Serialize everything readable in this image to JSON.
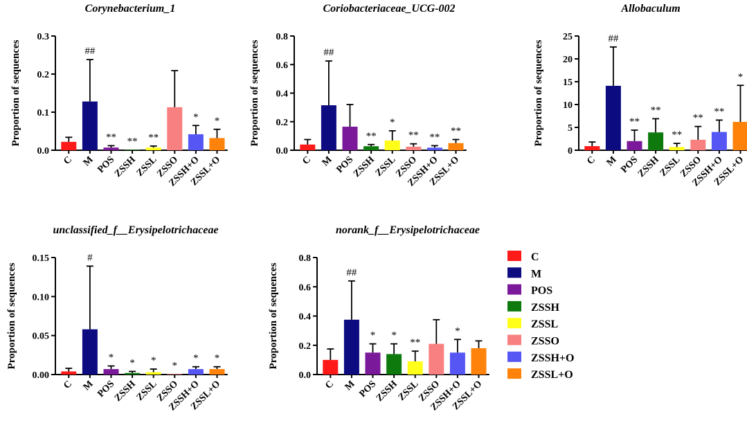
{
  "legend": {
    "items": [
      {
        "label": "C",
        "color": "#ff1a1a"
      },
      {
        "label": "M",
        "color": "#0c0c80"
      },
      {
        "label": "POS",
        "color": "#7a1a9a"
      },
      {
        "label": "ZSSH",
        "color": "#0e7a0e"
      },
      {
        "label": "ZSSL",
        "color": "#ffff1a"
      },
      {
        "label": "ZSSO",
        "color": "#f98080"
      },
      {
        "label": "ZSSH+O",
        "color": "#5656f5"
      },
      {
        "label": "ZSSL+O",
        "color": "#ff820a"
      }
    ]
  },
  "chart_data": [
    {
      "type": "bar",
      "title": "Corynebacterium_1",
      "ylabel": "Proportion of sequences",
      "xlabel": "",
      "ylim": [
        0,
        0.3
      ],
      "yticks": [
        "0.0",
        "0.1",
        "0.2",
        "0.3"
      ],
      "categories": [
        "C",
        "M",
        "POS",
        "ZSSH",
        "ZSSL",
        "ZSSO",
        "ZSSH+O",
        "ZSSL+O"
      ],
      "values": [
        0.022,
        0.128,
        0.007,
        0.0005,
        0.007,
        0.113,
        0.042,
        0.032
      ],
      "errors": [
        0.012,
        0.11,
        0.005,
        0.0005,
        0.004,
        0.096,
        0.023,
        0.023
      ],
      "annotations": [
        "",
        "##",
        "**",
        "**",
        "**",
        "",
        "*",
        "*"
      ]
    },
    {
      "type": "bar",
      "title": "Coriobacteriaceae_UCG-002",
      "ylabel": "Proportion of sequences",
      "xlabel": "",
      "ylim": [
        0,
        0.8
      ],
      "yticks": [
        "0.0",
        "0.2",
        "0.4",
        "0.6",
        "0.8"
      ],
      "categories": [
        "C",
        "M",
        "POS",
        "ZSSH",
        "ZSSL",
        "ZSSO",
        "ZSSH+O",
        "ZSSL+O"
      ],
      "values": [
        0.04,
        0.315,
        0.165,
        0.028,
        0.068,
        0.025,
        0.018,
        0.05
      ],
      "errors": [
        0.035,
        0.31,
        0.155,
        0.012,
        0.068,
        0.02,
        0.014,
        0.025
      ],
      "annotations": [
        "",
        "##",
        "",
        "**",
        "*",
        "**",
        "**",
        "**"
      ]
    },
    {
      "type": "bar",
      "title": "Allobaculum",
      "ylabel": "Proportion of sequences",
      "xlabel": "",
      "ylim": [
        0,
        25
      ],
      "yticks": [
        "0",
        "5",
        "10",
        "15",
        "20",
        "25"
      ],
      "categories": [
        "C",
        "M",
        "POS",
        "ZSSH",
        "ZSSL",
        "ZSSO",
        "ZSSH+O",
        "ZSSL+O"
      ],
      "values": [
        0.9,
        14.1,
        2.0,
        3.9,
        0.7,
        2.3,
        4.0,
        6.2
      ],
      "errors": [
        0.9,
        8.5,
        2.4,
        3.0,
        0.8,
        2.9,
        2.6,
        8.0
      ],
      "annotations": [
        "",
        "##",
        "**",
        "**",
        "**",
        "**",
        "**",
        "*"
      ]
    },
    {
      "type": "bar",
      "title": "unclassified_f__Erysipelotrichaceae",
      "ylabel": "Proportion of sequences",
      "xlabel": "",
      "ylim": [
        0,
        0.15
      ],
      "yticks": [
        "0.00",
        "0.05",
        "0.10",
        "0.15"
      ],
      "categories": [
        "C",
        "M",
        "POS",
        "ZSSH",
        "ZSSL",
        "ZSSO",
        "ZSSH+O",
        "ZSSL+O"
      ],
      "values": [
        0.004,
        0.058,
        0.007,
        0.002,
        0.003,
        0.0003,
        0.007,
        0.007
      ],
      "errors": [
        0.004,
        0.081,
        0.004,
        0.002,
        0.004,
        0.0003,
        0.003,
        0.003
      ],
      "annotations": [
        "",
        "#",
        "*",
        "*",
        "*",
        "*",
        "*",
        "*"
      ]
    },
    {
      "type": "bar",
      "title": "norank_f__Erysipelotrichaceae",
      "ylabel": "Proportion of sequences",
      "xlabel": "",
      "ylim": [
        0,
        0.8
      ],
      "yticks": [
        "0.0",
        "0.2",
        "0.4",
        "0.6",
        "0.8"
      ],
      "categories": [
        "C",
        "M",
        "POS",
        "ZSSH",
        "ZSSL",
        "ZSSO",
        "ZSSH+O",
        "ZSSL+O"
      ],
      "values": [
        0.1,
        0.375,
        0.15,
        0.14,
        0.09,
        0.21,
        0.15,
        0.18
      ],
      "errors": [
        0.075,
        0.265,
        0.06,
        0.07,
        0.07,
        0.165,
        0.09,
        0.05
      ],
      "annotations": [
        "",
        "##",
        "*",
        "*",
        "**",
        "",
        "*",
        ""
      ]
    }
  ]
}
